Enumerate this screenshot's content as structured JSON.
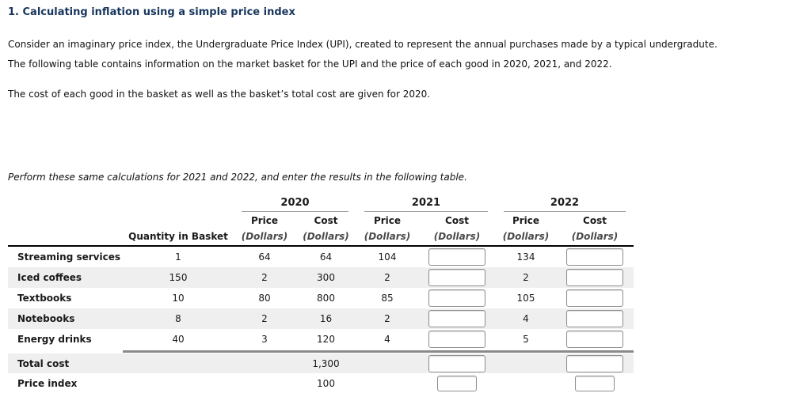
{
  "header": {
    "title": "1. Calculating inflation using a simple price index"
  },
  "intro": {
    "p1": "Consider an imaginary price index, the Undergraduate Price Index (UPI), created to represent the annual purchases made by a typical undergradute.",
    "p2": "The following table contains information on the market basket for the UPI and the price of each good in 2020, 2021, and 2022.",
    "p3": "The cost of each good in the basket as well as the basket’s total cost are given for 2020.",
    "instruction": "Perform these same calculations for 2021 and 2022, and enter the results in the following table."
  },
  "table": {
    "years": [
      "2020",
      "2021",
      "2022"
    ],
    "subheaders": {
      "price": "Price",
      "cost": "Cost",
      "dollars": "(Dollars)",
      "quantity": "Quantity in Basket"
    },
    "rows": [
      {
        "label": "Streaming services",
        "quantity": "1",
        "price2020": "64",
        "cost2020": "64",
        "price2021": "104",
        "cost2021_input": "",
        "price2022": "134",
        "cost2022_input": ""
      },
      {
        "label": "Iced coffees",
        "quantity": "150",
        "price2020": "2",
        "cost2020": "300",
        "price2021": "2",
        "cost2021_input": "",
        "price2022": "2",
        "cost2022_input": ""
      },
      {
        "label": "Textbooks",
        "quantity": "10",
        "price2020": "80",
        "cost2020": "800",
        "price2021": "85",
        "cost2021_input": "",
        "price2022": "105",
        "cost2022_input": ""
      },
      {
        "label": "Notebooks",
        "quantity": "8",
        "price2020": "2",
        "cost2020": "16",
        "price2021": "2",
        "cost2021_input": "",
        "price2022": "4",
        "cost2022_input": ""
      },
      {
        "label": "Energy drinks",
        "quantity": "40",
        "price2020": "3",
        "cost2020": "120",
        "price2021": "4",
        "cost2021_input": "",
        "price2022": "5",
        "cost2022_input": ""
      }
    ],
    "total_row": {
      "label": "Total cost",
      "cost2020": "1,300",
      "cost2021_input": "",
      "cost2022_input": ""
    },
    "index_row": {
      "label": "Price index",
      "value2020": "100",
      "value2021_input": "",
      "value2022_input": ""
    }
  },
  "colors": {
    "title_text": "#17365d",
    "row_band": "#efefef",
    "divider_line": "#8a8a8a",
    "header_border": "#000000",
    "year_underline": "#9e9e9e",
    "dollars_text": "#4a4a4a",
    "input_border": "#8f8f8f"
  }
}
